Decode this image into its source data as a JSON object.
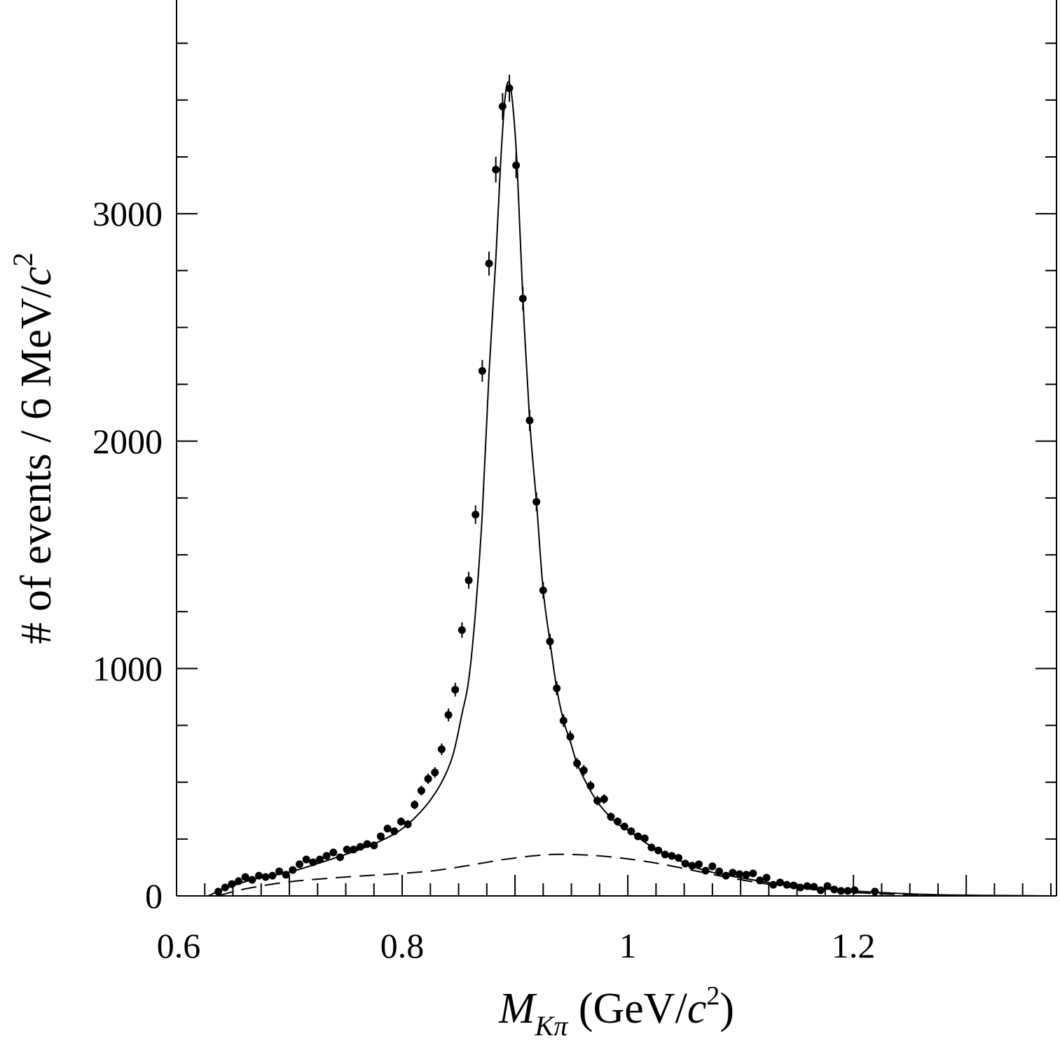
{
  "chart_data": {
    "type": "scatter",
    "title": "",
    "xlabel": {
      "main": "M",
      "sub": "Kπ",
      "rest": " (GeV/",
      "c": "c",
      "sup": "2",
      "close": ")"
    },
    "ylabel": {
      "main": "# of events / 6 MeV/",
      "c": "c",
      "sup": "2"
    },
    "xlim": [
      0.6,
      1.38
    ],
    "ylim": [
      0,
      3940
    ],
    "x_ticks": [
      0.6,
      0.8,
      1.0,
      1.2
    ],
    "x_tick_labels": [
      "0.6",
      "0.8",
      "1",
      "1.2"
    ],
    "x_major_step": 0.1,
    "x_minor_step": 0.025,
    "y_ticks": [
      0,
      1000,
      2000,
      3000
    ],
    "y_tick_labels": [
      "0",
      "1000",
      "2000",
      "3000"
    ],
    "y_minor_step": 250,
    "grid": false,
    "bin_width": 0.006,
    "series": [
      {
        "name": "data",
        "style": "points-with-errors",
        "x_start": 0.637,
        "values": [
          19,
          37,
          52,
          65,
          83,
          71,
          89,
          83,
          89,
          108,
          93,
          114,
          139,
          160,
          148,
          160,
          176,
          191,
          170,
          204,
          204,
          216,
          228,
          222,
          262,
          296,
          284,
          327,
          315,
          401,
          463,
          515,
          543,
          645,
          796,
          907,
          1169,
          1388,
          1677,
          2309,
          2781,
          3194,
          3472,
          3552,
          3213,
          2627,
          2091,
          1733,
          1344,
          1119,
          913,
          771,
          700,
          583,
          552,
          484,
          419,
          426,
          348,
          327,
          305,
          284,
          262,
          253,
          213,
          200,
          182,
          176,
          167,
          142,
          133,
          139,
          111,
          130,
          108,
          89,
          102,
          96,
          93,
          99,
          68,
          80,
          49,
          59,
          49,
          46,
          37,
          43,
          40,
          25,
          43,
          28,
          22,
          22,
          25,
          null,
          null,
          19
        ]
      },
      {
        "name": "fit-total",
        "style": "solid",
        "points": [
          [
            0.628,
            0
          ],
          [
            0.637,
            20
          ],
          [
            0.65,
            45
          ],
          [
            0.67,
            75
          ],
          [
            0.7,
            105
          ],
          [
            0.73,
            150
          ],
          [
            0.76,
            200
          ],
          [
            0.78,
            240
          ],
          [
            0.8,
            295
          ],
          [
            0.82,
            390
          ],
          [
            0.835,
            500
          ],
          [
            0.845,
            620
          ],
          [
            0.853,
            800
          ],
          [
            0.859,
            950
          ],
          [
            0.865,
            1250
          ],
          [
            0.871,
            1680
          ],
          [
            0.877,
            2300
          ],
          [
            0.883,
            2800
          ],
          [
            0.887,
            3200
          ],
          [
            0.891,
            3500
          ],
          [
            0.8945,
            3580
          ],
          [
            0.898,
            3480
          ],
          [
            0.902,
            3200
          ],
          [
            0.907,
            2627
          ],
          [
            0.913,
            2091
          ],
          [
            0.919,
            1733
          ],
          [
            0.925,
            1344
          ],
          [
            0.931,
            1119
          ],
          [
            0.937,
            913
          ],
          [
            0.943,
            771
          ],
          [
            0.949,
            680
          ],
          [
            0.955,
            583
          ],
          [
            0.965,
            480
          ],
          [
            0.975,
            400
          ],
          [
            0.99,
            320
          ],
          [
            1.0,
            290
          ],
          [
            1.02,
            220
          ],
          [
            1.04,
            170
          ],
          [
            1.06,
            125
          ],
          [
            1.08,
            98
          ],
          [
            1.1,
            80
          ],
          [
            1.13,
            55
          ],
          [
            1.16,
            38
          ],
          [
            1.2,
            22
          ],
          [
            1.25,
            9
          ],
          [
            1.3,
            3
          ],
          [
            1.38,
            0
          ]
        ]
      },
      {
        "name": "background",
        "style": "dashed",
        "points": [
          [
            0.637,
            0
          ],
          [
            0.66,
            30
          ],
          [
            0.7,
            62
          ],
          [
            0.75,
            83
          ],
          [
            0.8,
            99
          ],
          [
            0.83,
            112
          ],
          [
            0.86,
            135
          ],
          [
            0.89,
            160
          ],
          [
            0.92,
            178
          ],
          [
            0.94,
            183
          ],
          [
            0.97,
            178
          ],
          [
            1.0,
            163
          ],
          [
            1.03,
            140
          ],
          [
            1.06,
            110
          ],
          [
            1.09,
            80
          ],
          [
            1.12,
            55
          ],
          [
            1.15,
            35
          ],
          [
            1.2,
            15
          ],
          [
            1.25,
            5
          ],
          [
            1.3,
            1
          ],
          [
            1.38,
            0
          ]
        ]
      }
    ]
  }
}
